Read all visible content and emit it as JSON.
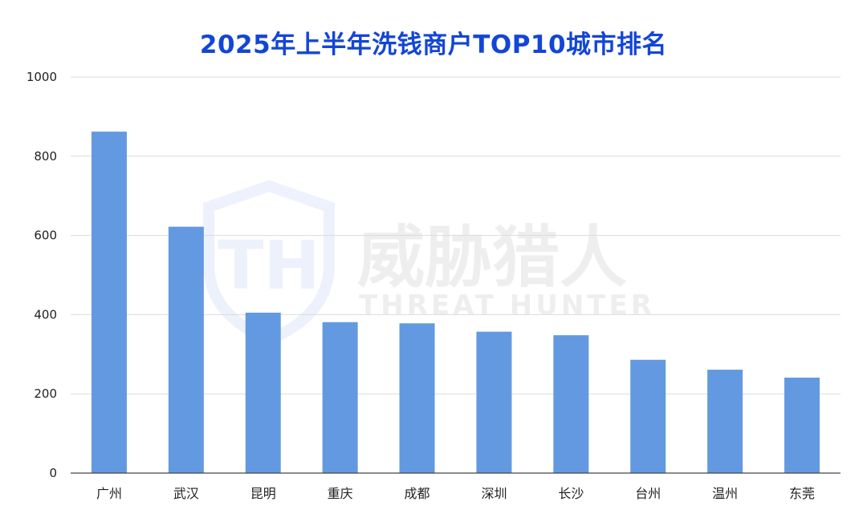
{
  "chart_data": {
    "type": "bar",
    "title": "2025年上半年洗钱商户TOP10城市排名",
    "xlabel": "",
    "ylabel": "",
    "ylim": [
      0,
      1000
    ],
    "yticks": [
      0,
      200,
      400,
      600,
      800,
      1000
    ],
    "grid": true,
    "categories": [
      "广州",
      "武汉",
      "昆明",
      "重庆",
      "成都",
      "深圳",
      "长沙",
      "台州",
      "温州",
      "东莞"
    ],
    "values": [
      862,
      622,
      405,
      381,
      378,
      357,
      348,
      286,
      261,
      241
    ],
    "bar_color": "#6399e0"
  },
  "watermark": {
    "brand_cn": "威胁猎人",
    "brand_en": "THREAT HUNTER",
    "logo_letters": "TH"
  },
  "colors": {
    "title": "#1346d6",
    "grid": "#dcdcdc",
    "axis": "#444444"
  }
}
